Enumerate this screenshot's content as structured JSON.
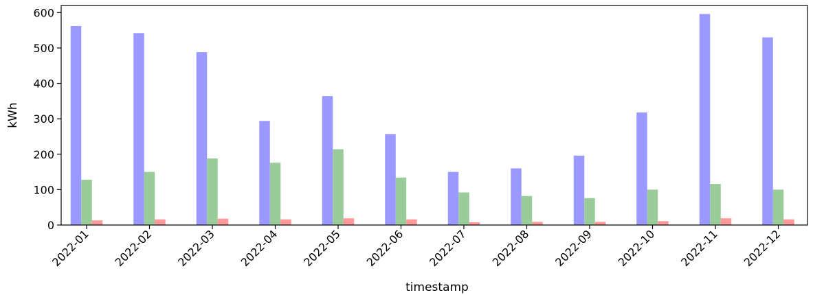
{
  "chart_data": {
    "type": "bar",
    "categories": [
      "2022-01",
      "2022-02",
      "2022-03",
      "2022-04",
      "2022-05",
      "2022-06",
      "2022-07",
      "2022-08",
      "2022-09",
      "2022-10",
      "2022-11",
      "2022-12"
    ],
    "series": [
      {
        "color": "#9999ff",
        "values": [
          562,
          542,
          488,
          294,
          364,
          257,
          150,
          160,
          196,
          318,
          596,
          530
        ]
      },
      {
        "color": "#99cc99",
        "values": [
          128,
          150,
          188,
          176,
          214,
          134,
          92,
          82,
          76,
          100,
          116,
          100
        ]
      },
      {
        "color": "#ff9999",
        "values": [
          13,
          16,
          18,
          16,
          19,
          16,
          8,
          9,
          9,
          11,
          19,
          16
        ]
      }
    ],
    "xlabel": "timestamp",
    "ylabel": "kWh",
    "ylim": [
      0,
      620
    ],
    "yticks": [
      0,
      100,
      200,
      300,
      400,
      500,
      600
    ],
    "grid": false,
    "legend": "none"
  }
}
